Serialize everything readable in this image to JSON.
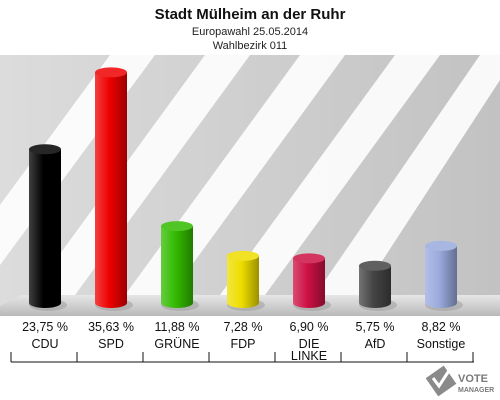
{
  "chart_data": {
    "type": "bar",
    "title": "Stadt Mülheim an der Ruhr",
    "subtitle": "Europawahl 25.05.2014",
    "subtitle2": "Wahlbezirk 011",
    "categories": [
      "CDU",
      "SPD",
      "GRÜNE",
      "FDP",
      "DIE LINKE",
      "AfD",
      "Sonstige"
    ],
    "category_lines": [
      [
        "CDU"
      ],
      [
        "SPD"
      ],
      [
        "GRÜNE"
      ],
      [
        "FDP"
      ],
      [
        "DIE",
        "LINKE"
      ],
      [
        "AfD"
      ],
      [
        "Sonstige"
      ]
    ],
    "values": [
      23.75,
      35.63,
      11.88,
      7.28,
      6.9,
      5.75,
      8.82
    ],
    "value_labels": [
      "23,75 %",
      "35,63 %",
      "11,88 %",
      "7,28 %",
      "6,90 %",
      "5,75 %",
      "8,82 %"
    ],
    "colors": [
      "#000000",
      "#ee0000",
      "#33bb00",
      "#eedd00",
      "#cc1144",
      "#444444",
      "#99aadd"
    ],
    "ylim": [
      0,
      40
    ],
    "grid": false,
    "legend": "none"
  },
  "watermark": {
    "line1": "VOTE",
    "line2": "MANAGER"
  }
}
